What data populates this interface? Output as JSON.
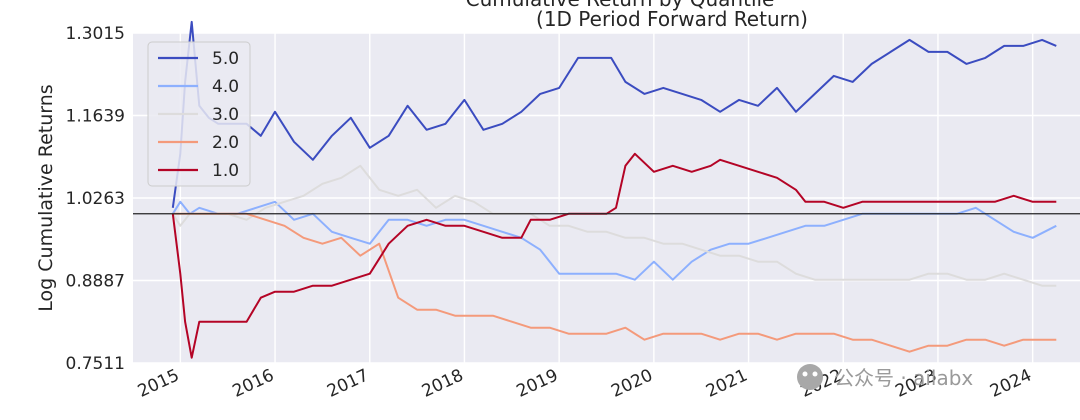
{
  "chart_data": {
    "type": "line",
    "title": "Cumulative Return by Quantile",
    "subtitle": "(1D Period Forward Return)",
    "ylabel": "Log Cumulative Returns",
    "xlabel": "",
    "y_ticks": [
      "0.7511",
      "0.8887",
      "1.0263",
      "1.1639",
      "1.3015"
    ],
    "y_tick_values": [
      0.7511,
      0.8887,
      1.0263,
      1.1639,
      1.3015
    ],
    "ylim": [
      0.7511,
      1.3015
    ],
    "x_ticks": [
      "2015",
      "2016",
      "2017",
      "2018",
      "2019",
      "2020",
      "2021",
      "2022",
      "2023",
      "2024"
    ],
    "xlim": [
      2015.0,
      2025.0
    ],
    "reference_line": 1.0,
    "grid": true,
    "legend_position": "top-left",
    "series": [
      {
        "name": "5.0",
        "color": "#3b4cc0",
        "x": [
          2015.42,
          2015.5,
          2015.55,
          2015.62,
          2015.7,
          2015.8,
          2015.9,
          2016.0,
          2016.2,
          2016.35,
          2016.5,
          2016.7,
          2016.9,
          2017.1,
          2017.3,
          2017.5,
          2017.7,
          2017.9,
          2018.1,
          2018.3,
          2018.5,
          2018.7,
          2018.9,
          2019.1,
          2019.3,
          2019.5,
          2019.7,
          2019.9,
          2020.05,
          2020.2,
          2020.4,
          2020.6,
          2020.8,
          2021.0,
          2021.2,
          2021.4,
          2021.6,
          2021.8,
          2022.0,
          2022.2,
          2022.4,
          2022.6,
          2022.8,
          2023.0,
          2023.2,
          2023.4,
          2023.6,
          2023.8,
          2024.0,
          2024.2,
          2024.4,
          2024.6,
          2024.75
        ],
        "y": [
          1.01,
          1.1,
          1.22,
          1.32,
          1.18,
          1.16,
          1.15,
          1.15,
          1.15,
          1.13,
          1.17,
          1.12,
          1.09,
          1.13,
          1.16,
          1.11,
          1.13,
          1.18,
          1.14,
          1.15,
          1.19,
          1.14,
          1.15,
          1.17,
          1.2,
          1.21,
          1.26,
          1.26,
          1.26,
          1.22,
          1.2,
          1.21,
          1.2,
          1.19,
          1.17,
          1.19,
          1.18,
          1.21,
          1.17,
          1.2,
          1.23,
          1.22,
          1.25,
          1.27,
          1.29,
          1.27,
          1.27,
          1.25,
          1.26,
          1.28,
          1.28,
          1.29,
          1.28
        ]
      },
      {
        "name": "4.0",
        "color": "#8db0fe",
        "x": [
          2015.42,
          2015.5,
          2015.6,
          2015.7,
          2015.9,
          2016.1,
          2016.3,
          2016.5,
          2016.7,
          2016.9,
          2017.1,
          2017.3,
          2017.5,
          2017.7,
          2017.9,
          2018.1,
          2018.3,
          2018.5,
          2018.7,
          2018.9,
          2019.1,
          2019.3,
          2019.5,
          2019.7,
          2019.9,
          2020.1,
          2020.3,
          2020.5,
          2020.7,
          2020.9,
          2021.1,
          2021.3,
          2021.5,
          2021.7,
          2021.9,
          2022.1,
          2022.3,
          2022.5,
          2022.7,
          2022.9,
          2023.1,
          2023.3,
          2023.5,
          2023.7,
          2023.9,
          2024.1,
          2024.3,
          2024.5,
          2024.75
        ],
        "y": [
          1.0,
          1.02,
          1.0,
          1.01,
          1.0,
          1.0,
          1.01,
          1.02,
          0.99,
          1.0,
          0.97,
          0.96,
          0.95,
          0.99,
          0.99,
          0.98,
          0.99,
          0.99,
          0.98,
          0.97,
          0.96,
          0.94,
          0.9,
          0.9,
          0.9,
          0.9,
          0.89,
          0.92,
          0.89,
          0.92,
          0.94,
          0.95,
          0.95,
          0.96,
          0.97,
          0.98,
          0.98,
          0.99,
          1.0,
          1.0,
          1.0,
          1.0,
          1.0,
          1.0,
          1.01,
          0.99,
          0.97,
          0.96,
          0.98
        ]
      },
      {
        "name": "3.0",
        "color": "#dddcdc",
        "x": [
          2015.42,
          2015.5,
          2015.6,
          2015.8,
          2016.0,
          2016.2,
          2016.4,
          2016.6,
          2016.8,
          2017.0,
          2017.2,
          2017.4,
          2017.6,
          2017.8,
          2018.0,
          2018.2,
          2018.4,
          2018.6,
          2018.8,
          2019.0,
          2019.2,
          2019.4,
          2019.6,
          2019.8,
          2020.0,
          2020.2,
          2020.4,
          2020.6,
          2020.8,
          2021.0,
          2021.2,
          2021.4,
          2021.6,
          2021.8,
          2022.0,
          2022.2,
          2022.4,
          2022.6,
          2022.8,
          2023.0,
          2023.2,
          2023.4,
          2023.6,
          2023.8,
          2024.0,
          2024.2,
          2024.4,
          2024.6,
          2024.75
        ],
        "y": [
          1.0,
          0.98,
          1.0,
          1.0,
          1.0,
          0.99,
          1.01,
          1.02,
          1.03,
          1.05,
          1.06,
          1.08,
          1.04,
          1.03,
          1.04,
          1.01,
          1.03,
          1.02,
          1.0,
          1.0,
          1.0,
          0.98,
          0.98,
          0.97,
          0.97,
          0.96,
          0.96,
          0.95,
          0.95,
          0.94,
          0.93,
          0.93,
          0.92,
          0.92,
          0.9,
          0.89,
          0.89,
          0.89,
          0.89,
          0.89,
          0.89,
          0.9,
          0.9,
          0.89,
          0.89,
          0.9,
          0.89,
          0.88,
          0.88
        ]
      },
      {
        "name": "2.0",
        "color": "#f49a7b",
        "x": [
          2015.42,
          2015.5,
          2015.6,
          2015.8,
          2016.0,
          2016.2,
          2016.4,
          2016.6,
          2016.8,
          2017.0,
          2017.2,
          2017.4,
          2017.6,
          2017.8,
          2018.0,
          2018.2,
          2018.4,
          2018.6,
          2018.8,
          2019.0,
          2019.2,
          2019.4,
          2019.6,
          2019.8,
          2020.0,
          2020.2,
          2020.4,
          2020.6,
          2020.8,
          2021.0,
          2021.2,
          2021.4,
          2021.6,
          2021.8,
          2022.0,
          2022.2,
          2022.4,
          2022.6,
          2022.8,
          2023.0,
          2023.2,
          2023.4,
          2023.6,
          2023.8,
          2024.0,
          2024.2,
          2024.4,
          2024.6,
          2024.75
        ],
        "y": [
          1.0,
          1.0,
          1.0,
          1.0,
          1.0,
          1.0,
          0.99,
          0.98,
          0.96,
          0.95,
          0.96,
          0.93,
          0.95,
          0.86,
          0.84,
          0.84,
          0.83,
          0.83,
          0.83,
          0.82,
          0.81,
          0.81,
          0.8,
          0.8,
          0.8,
          0.81,
          0.79,
          0.8,
          0.8,
          0.8,
          0.79,
          0.8,
          0.8,
          0.79,
          0.8,
          0.8,
          0.8,
          0.79,
          0.79,
          0.78,
          0.77,
          0.78,
          0.78,
          0.79,
          0.79,
          0.78,
          0.79,
          0.79,
          0.79
        ]
      },
      {
        "name": "1.0",
        "color": "#b40426",
        "x": [
          2015.42,
          2015.5,
          2015.55,
          2015.62,
          2015.7,
          2015.8,
          2016.0,
          2016.2,
          2016.35,
          2016.5,
          2016.7,
          2016.9,
          2017.1,
          2017.3,
          2017.5,
          2017.7,
          2017.9,
          2018.1,
          2018.3,
          2018.5,
          2018.7,
          2018.9,
          2019.1,
          2019.2,
          2019.4,
          2019.6,
          2019.8,
          2020.0,
          2020.1,
          2020.2,
          2020.3,
          2020.5,
          2020.7,
          2020.9,
          2021.1,
          2021.2,
          2021.4,
          2021.6,
          2021.8,
          2022.0,
          2022.1,
          2022.3,
          2022.5,
          2022.7,
          2022.9,
          2023.1,
          2023.3,
          2023.5,
          2023.7,
          2023.9,
          2024.1,
          2024.3,
          2024.5,
          2024.75
        ],
        "y": [
          1.0,
          0.9,
          0.82,
          0.76,
          0.82,
          0.82,
          0.82,
          0.82,
          0.86,
          0.87,
          0.87,
          0.88,
          0.88,
          0.89,
          0.9,
          0.95,
          0.98,
          0.99,
          0.98,
          0.98,
          0.97,
          0.96,
          0.96,
          0.99,
          0.99,
          1.0,
          1.0,
          1.0,
          1.01,
          1.08,
          1.1,
          1.07,
          1.08,
          1.07,
          1.08,
          1.09,
          1.08,
          1.07,
          1.06,
          1.04,
          1.02,
          1.02,
          1.01,
          1.02,
          1.02,
          1.02,
          1.02,
          1.02,
          1.02,
          1.02,
          1.02,
          1.03,
          1.02,
          1.02
        ]
      }
    ]
  },
  "watermark": "公众号 · ailabx"
}
